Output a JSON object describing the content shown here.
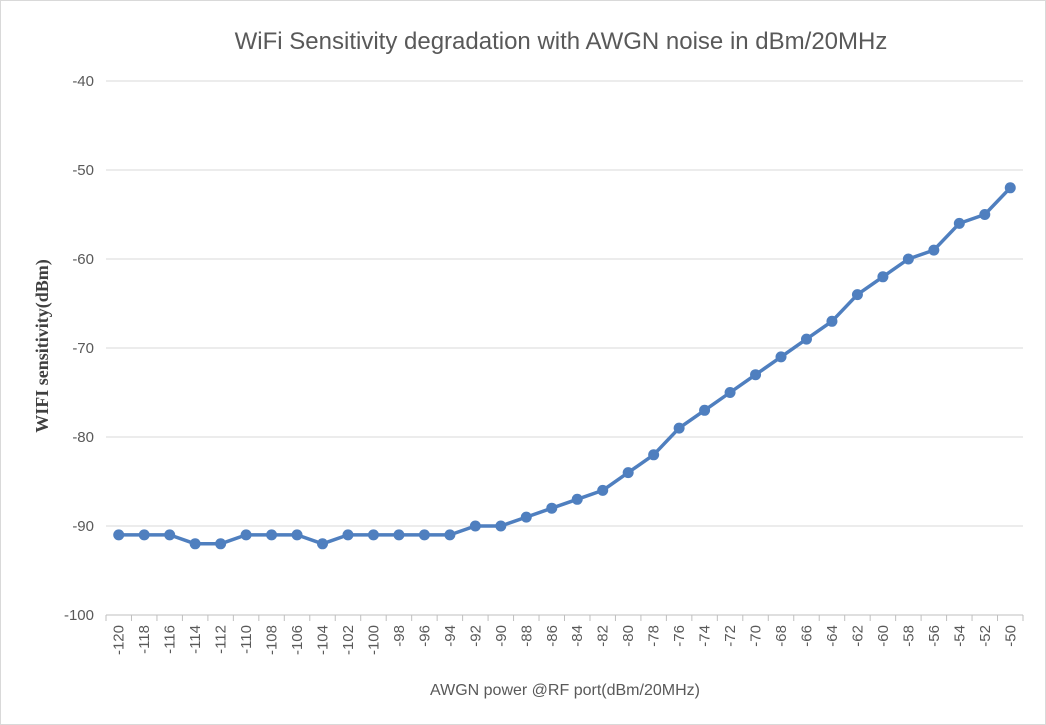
{
  "chart_data": {
    "type": "line",
    "title": "WiFi Sensitivity degradation with AWGN noise in dBm/20MHz",
    "xlabel": "AWGN power @RF port(dBm/20MHz)",
    "ylabel": "WIFI sensitivity(dBm)",
    "ylim": [
      -100,
      -40
    ],
    "yticks": [
      -100,
      -90,
      -80,
      -70,
      -60,
      -50,
      -40
    ],
    "grid": true,
    "legend": "none",
    "line_color": "#4f7fbf",
    "categories": [
      "-120",
      "-118",
      "-116",
      "-114",
      "-112",
      "-110",
      "-108",
      "-106",
      "-104",
      "-102",
      "-100",
      "-98",
      "-96",
      "-94",
      "-92",
      "-90",
      "-88",
      "-86",
      "-84",
      "-82",
      "-80",
      "-78",
      "-76",
      "-74",
      "-72",
      "-70",
      "-68",
      "-66",
      "-64",
      "-62",
      "-60",
      "-58",
      "-56",
      "-54",
      "-52",
      "-50"
    ],
    "series": [
      {
        "values": [
          -91,
          -91,
          -91,
          -92,
          -92,
          -91,
          -91,
          -91,
          -92,
          -91,
          -91,
          -91,
          -91,
          -91,
          -90,
          -90,
          -89,
          -88,
          -87,
          -86,
          -84,
          -82,
          -79,
          -77,
          -75,
          -73,
          -71,
          -69,
          -67,
          -64,
          -62,
          -60,
          -59,
          -56,
          -55,
          -52
        ]
      }
    ]
  }
}
